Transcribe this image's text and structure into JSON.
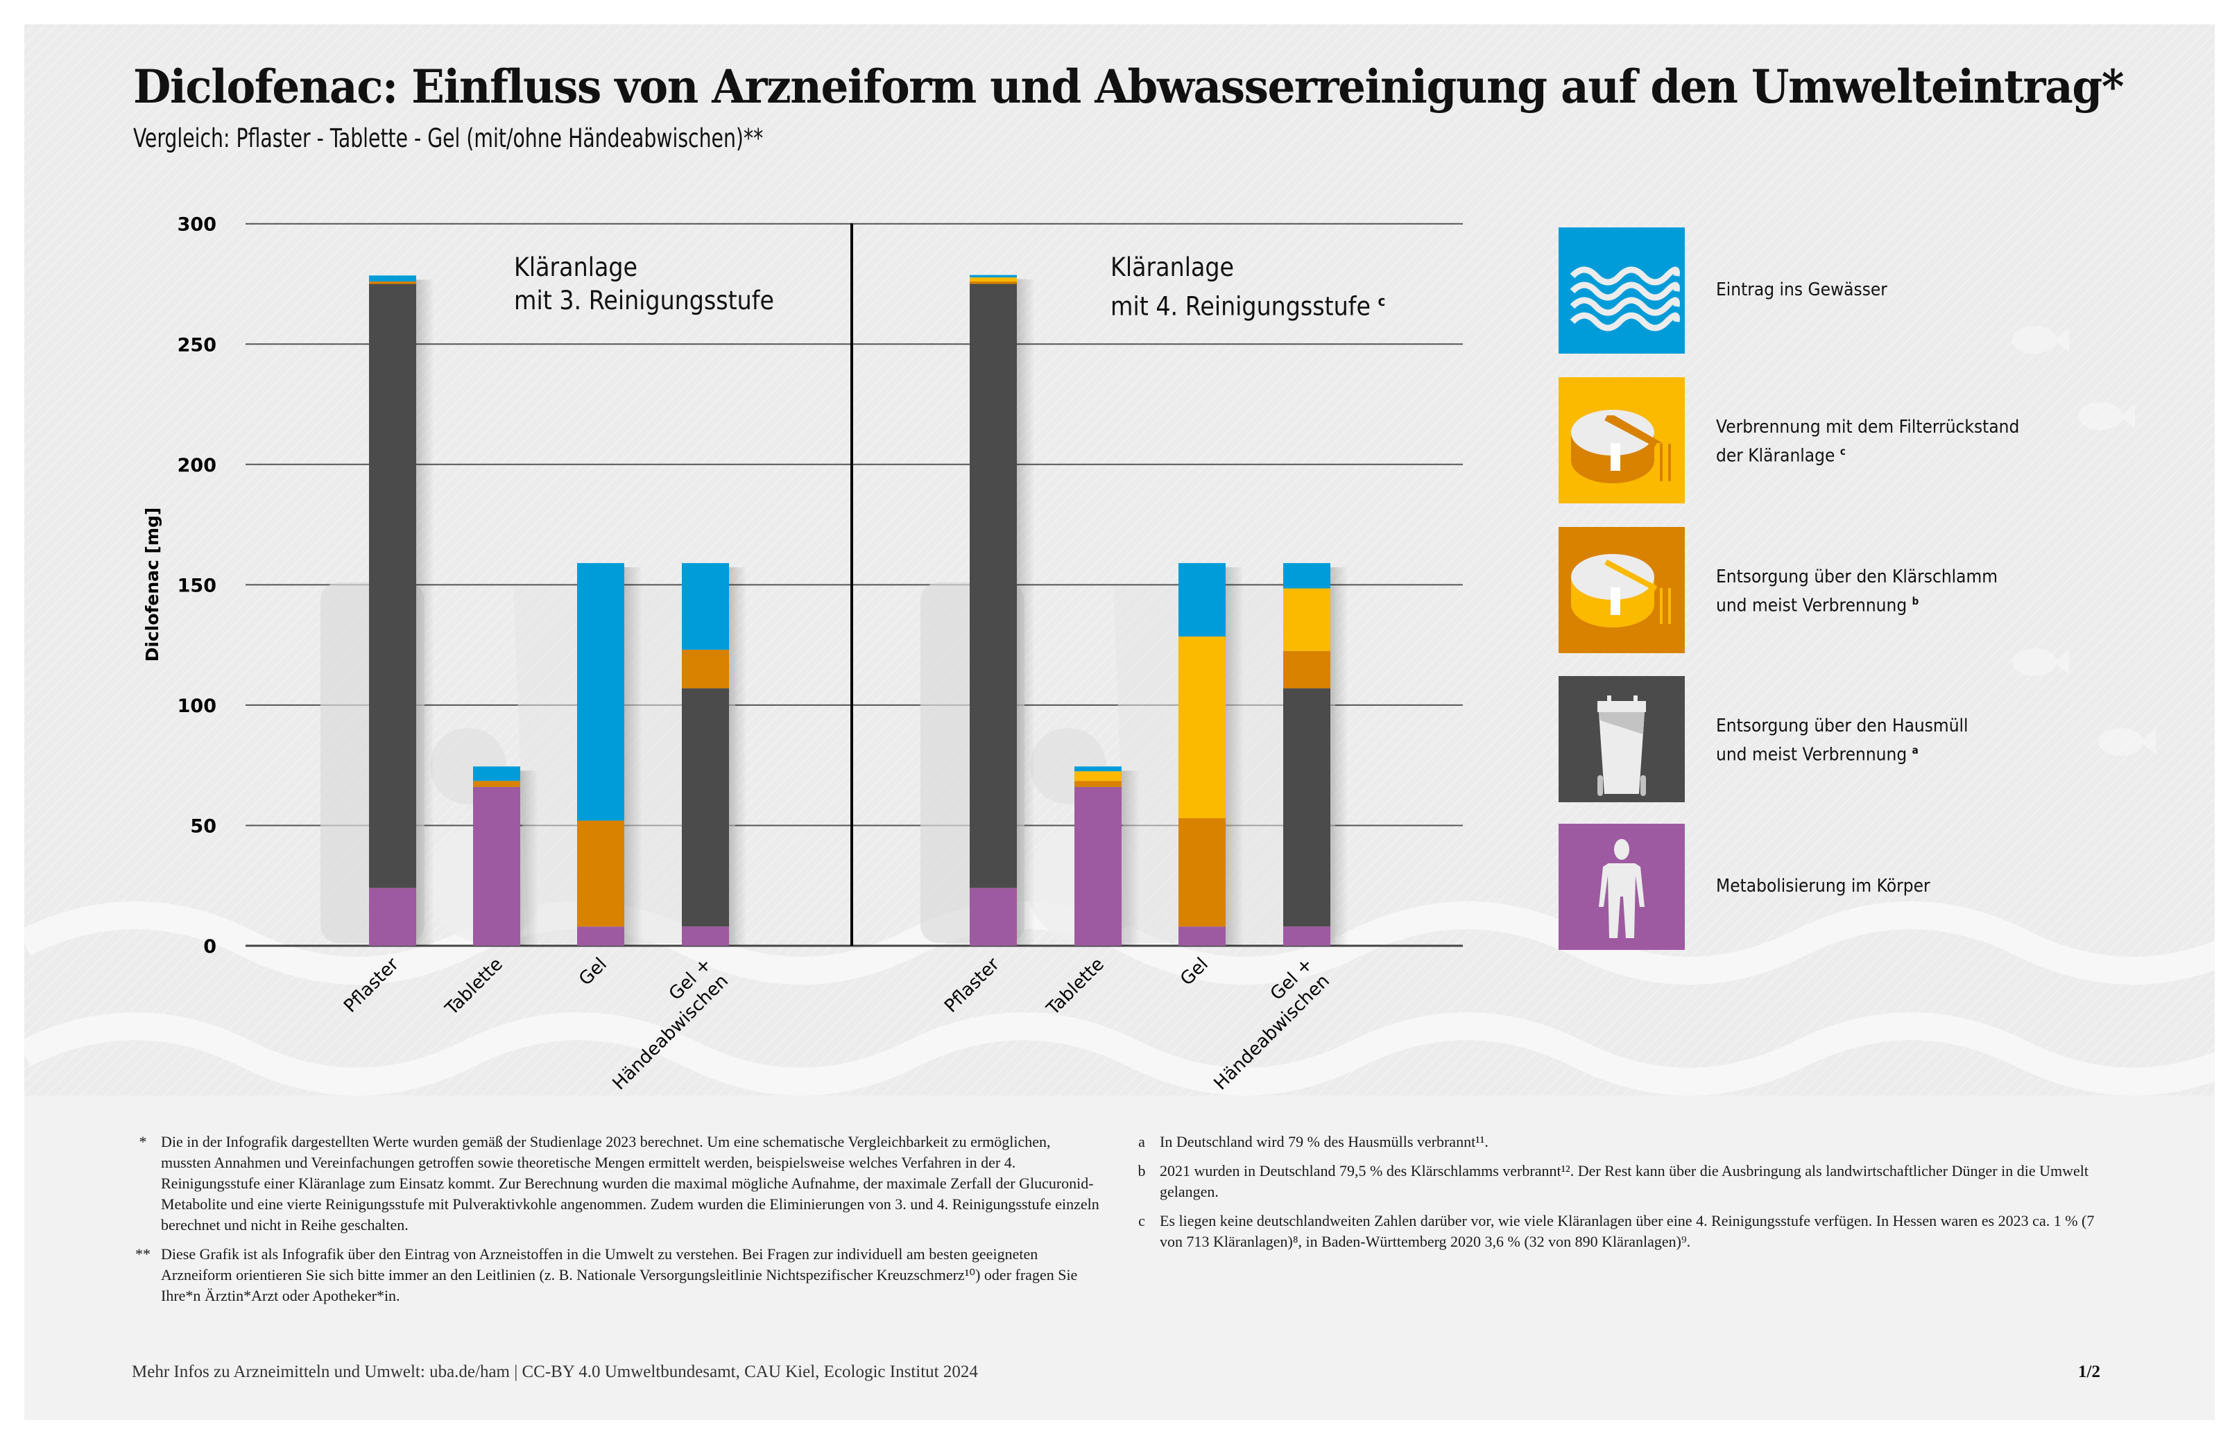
{
  "header": {
    "title": "Diclofenac: Einfluss von Arzneiform und Abwasserreinigung auf den Umwelteintrag*",
    "subtitle": "Vergleich: Pflaster - Tablette - Gel (mit/ohne Händeabwischen)**"
  },
  "colors": {
    "eintrag_gewaesser": "#009cd9",
    "verbrennung_filter": "#fbb900",
    "entsorgung_klaerschlamm": "#d88200",
    "entsorgung_hausmuell": "#4b4b4b",
    "metabolisierung": "#9e5aa0"
  },
  "chart_data": {
    "type": "bar",
    "stacked": true,
    "title": "Diclofenac: Einfluss von Arzneiform und Abwasserreinigung auf den Umwelteintrag*",
    "ylabel": "Diclofenac [mg]",
    "xlabel": "",
    "ylim": [
      0,
      300
    ],
    "yticks": [
      "0",
      "50",
      "100",
      "150",
      "200",
      "250",
      "300"
    ],
    "grid": true,
    "legend_position": "right",
    "categories": [
      "Pflaster",
      "Tablette",
      "Gel",
      "Gel + Händeabwischen"
    ],
    "category_lines": [
      [
        "Pflaster"
      ],
      [
        "Tablette"
      ],
      [
        "Gel"
      ],
      [
        "Gel +",
        "Händeabwischen"
      ]
    ],
    "series_names": [
      "Metabolisierung im Körper",
      "Entsorgung über den Hausmüll und meist Verbrennung",
      "Entsorgung über den Klärschlamm und meist Verbrennung",
      "Verbrennung mit dem Filterrückstand der Kläranlage",
      "Eintrag ins Gewässer"
    ],
    "series_keys": [
      "metabolisierung",
      "entsorgung_hausmuell",
      "entsorgung_klaerschlamm",
      "verbrennung_filter",
      "eintrag_gewaesser"
    ],
    "panels": [
      {
        "label_line1": "Kläranlage",
        "label_line2": "mit 3. Reinigungsstufe",
        "label_sup": "",
        "series": [
          {
            "name": "Metabolisierung im Körper",
            "values": [
              24,
              66,
              8,
              8
            ]
          },
          {
            "name": "Entsorgung über den Hausmüll und meist Verbrennung",
            "values": [
              251,
              0,
              0,
              99
            ]
          },
          {
            "name": "Entsorgung über den Klärschlamm und meist Verbrennung",
            "values": [
              1,
              2.5,
              44,
              16
            ]
          },
          {
            "name": "Verbrennung mit dem Filterrückstand der Kläranlage",
            "values": [
              0,
              0,
              0,
              0
            ]
          },
          {
            "name": "Eintrag ins Gewässer",
            "values": [
              2.5,
              6,
              107,
              36
            ]
          }
        ]
      },
      {
        "label_line1": "Kläranlage",
        "label_line2": "mit 4. Reinigungsstufe",
        "label_sup": "c",
        "series": [
          {
            "name": "Metabolisierung im Körper",
            "values": [
              24,
              66,
              8,
              8
            ]
          },
          {
            "name": "Entsorgung über den Hausmüll und meist Verbrennung",
            "values": [
              251,
              0,
              0,
              99
            ]
          },
          {
            "name": "Entsorgung über den Klärschlamm und meist Verbrennung",
            "values": [
              1,
              2.5,
              45,
              15.5
            ]
          },
          {
            "name": "Verbrennung mit dem Filterrückstand der Kläranlage",
            "values": [
              1.7,
              4,
              75.5,
              26
            ]
          },
          {
            "name": "Eintrag ins Gewässer",
            "values": [
              1,
              2,
              30.5,
              10.5
            ]
          }
        ]
      }
    ]
  },
  "legend": [
    {
      "key": "eintrag_gewaesser",
      "icon": "water-waves-icon",
      "line1": "Eintrag ins Gewässer",
      "line2": "",
      "sup": ""
    },
    {
      "key": "verbrennung_filter",
      "icon": "clarifier-tank-icon",
      "line1": "Verbrennung mit dem Filterrückstand",
      "line2": "der Kläranlage",
      "sup": "c"
    },
    {
      "key": "entsorgung_klaerschlamm",
      "icon": "clarifier-tank-icon",
      "line1": "Entsorgung über den Klärschlamm",
      "line2": "und meist Verbrennung",
      "sup": "b"
    },
    {
      "key": "entsorgung_hausmuell",
      "icon": "waste-bin-icon",
      "line1": "Entsorgung über den Hausmüll",
      "line2": "und meist Verbrennung",
      "sup": "a"
    },
    {
      "key": "metabolisierung",
      "icon": "human-body-icon",
      "line1": "Metabolisierung im Körper",
      "line2": "",
      "sup": ""
    }
  ],
  "notes_left": [
    {
      "mark": "*",
      "text": "Die in der Infografik dargestellten Werte wurden gemäß der Studienlage 2023 berechnet. Um eine schematische Vergleichbarkeit zu ermöglichen, mussten Annahmen und Vereinfachungen getroffen sowie theoretische Mengen ermittelt werden, beispielsweise welches Verfahren in der 4. Reinigungsstufe einer Kläranlage zum Einsatz kommt. Zur Berechnung wurden die maximal mögliche Aufnahme, der maximale Zerfall der Glucuronid-Metabolite und eine vierte Reinigungsstufe mit Pulveraktivkohle angenommen. Zudem wurden die Eliminierungen von 3. und 4. Reinigungsstufe einzeln berechnet und nicht in Reihe geschalten."
    },
    {
      "mark": "**",
      "text": "Diese Grafik ist als Infografik über den Eintrag von Arzneistoffen in die Umwelt zu verstehen. Bei Fragen zur individuell am besten geeigneten Arzneiform orientieren Sie sich bitte immer an den Leitlinien (z. B. Nationale Versorgungsleitlinie Nichtspezifischer Kreuzschmerz¹⁰) oder fragen Sie Ihre*n Ärztin*Arzt oder Apotheker*in."
    }
  ],
  "notes_right": [
    {
      "mark": "a",
      "text": "In Deutschland wird 79 % des Hausmülls verbrannt¹¹."
    },
    {
      "mark": "b",
      "text": "2021 wurden in Deutschland 79,5 % des Klärschlamms verbrannt¹². Der Rest kann über die Ausbringung als landwirtschaftlicher Dünger in die Umwelt gelangen."
    },
    {
      "mark": "c",
      "text": "Es liegen keine deutschlandweiten Zahlen darüber vor, wie viele Kläranlagen über eine 4. Reinigungsstufe verfügen. In Hessen waren es 2023 ca. 1 % (7 von 713 Kläranlagen)⁸, in Baden-Württemberg 2020 3,6 % (32 von 890 Kläranlagen)⁹."
    }
  ],
  "footer": {
    "source": "Mehr Infos zu Arzneimitteln und Umwelt: uba.de/ham | CC-BY 4.0 Umweltbundesamt, CAU Kiel, Ecologic Institut 2024",
    "page": "1/2"
  }
}
